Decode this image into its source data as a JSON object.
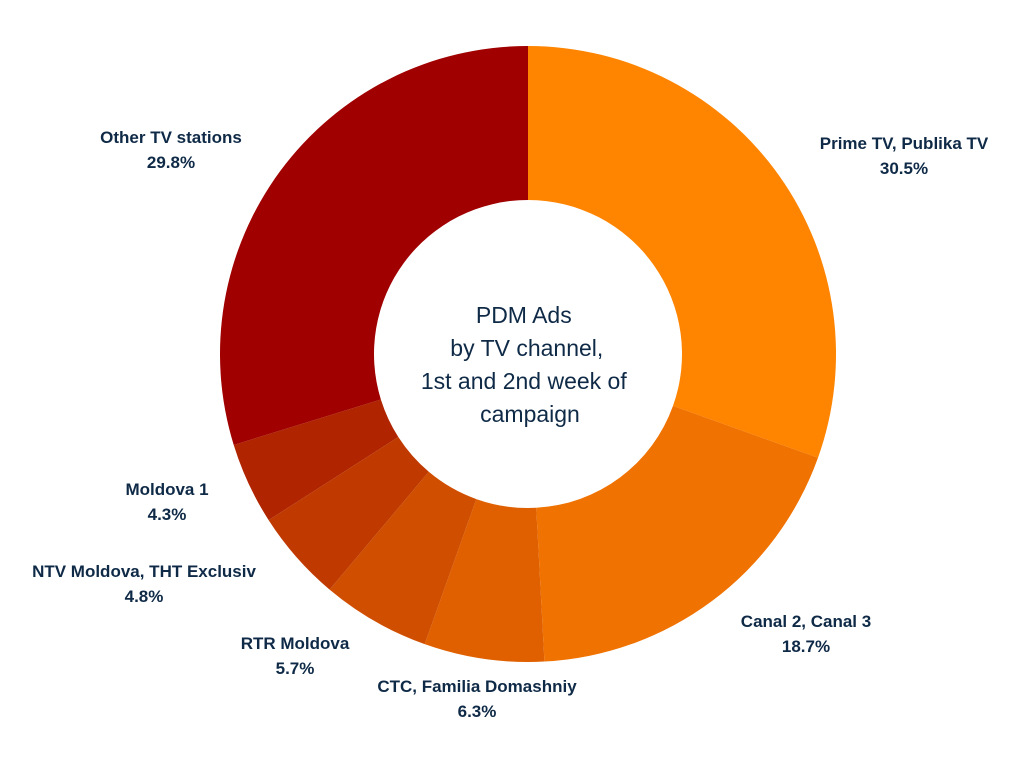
{
  "chart_data": {
    "type": "pie",
    "center_title_lines": [
      "PDM Ads",
      "by TV channel,",
      "1st and 2nd week of",
      "campaign"
    ],
    "slices": [
      {
        "label": "Prime TV, Publika TV",
        "value": 30.5,
        "value_label": "30.5%",
        "color": "#ff8400"
      },
      {
        "label": "Canal 2, Canal 3",
        "value": 18.7,
        "value_label": "18.7%",
        "color": "#f07200"
      },
      {
        "label": "CTC, Familia Domashniy",
        "value": 6.3,
        "value_label": "6.3%",
        "color": "#e06000"
      },
      {
        "label": "RTR Moldova",
        "value": 5.7,
        "value_label": "5.7%",
        "color": "#d04e00"
      },
      {
        "label": "NTV Moldova, THT Exclusiv",
        "value": 4.8,
        "value_label": "4.8%",
        "color": "#c03a00"
      },
      {
        "label": "Moldova 1",
        "value": 4.3,
        "value_label": "4.3%",
        "color": "#b02500"
      },
      {
        "label": "Other TV stations",
        "value": 29.8,
        "value_label": "29.8%",
        "color": "#a00000"
      }
    ]
  }
}
